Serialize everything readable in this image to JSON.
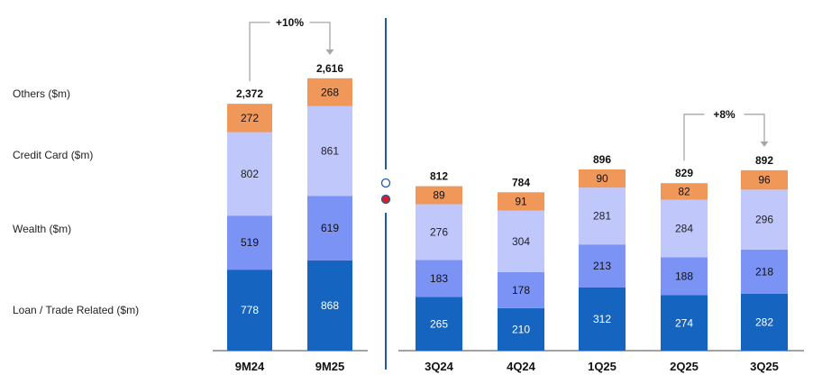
{
  "chart_data": [
    {
      "type": "bar",
      "stacked": true,
      "title": "",
      "categories": [
        "9M24",
        "9M25"
      ],
      "series": [
        {
          "name": "Loan / Trade Related ($m)",
          "values": [
            778,
            868
          ]
        },
        {
          "name": "Wealth ($m)",
          "values": [
            519,
            619
          ]
        },
        {
          "name": "Credit Card ($m)",
          "values": [
            802,
            861
          ]
        },
        {
          "name": "Others ($m)",
          "values": [
            272,
            268
          ]
        }
      ],
      "totals": [
        "2,372",
        "2,616"
      ],
      "growth": {
        "label": "+10%",
        "from": "9M24",
        "to": "9M25"
      }
    },
    {
      "type": "bar",
      "stacked": true,
      "title": "",
      "categories": [
        "3Q24",
        "4Q24",
        "1Q25",
        "2Q25",
        "3Q25"
      ],
      "series": [
        {
          "name": "Loan / Trade Related ($m)",
          "values": [
            265,
            210,
            312,
            274,
            282
          ]
        },
        {
          "name": "Wealth ($m)",
          "values": [
            183,
            178,
            213,
            188,
            218
          ]
        },
        {
          "name": "Credit Card ($m)",
          "values": [
            276,
            304,
            281,
            284,
            296
          ]
        },
        {
          "name": "Others ($m)",
          "values": [
            89,
            91,
            90,
            82,
            96
          ]
        }
      ],
      "totals": [
        "812",
        "784",
        "896",
        "829",
        "892"
      ],
      "growth": {
        "label": "+8%",
        "from": "2Q25",
        "to": "3Q25"
      }
    }
  ],
  "legend": [
    {
      "label": "Others ($m)"
    },
    {
      "label": "Credit Card ($m)"
    },
    {
      "label": "Wealth ($m)"
    },
    {
      "label": "Loan / Trade Related ($m)"
    }
  ],
  "colors": {
    "loan": "#1565c0",
    "wealth": "#7b93f5",
    "credit_card": "#c0c8fb",
    "others": "#f0975a",
    "axis": "#444444",
    "divider": "#1f5aa8",
    "connector": "#a6a6a6",
    "dot_filled": "#d61e2a",
    "dot_outline": "#1f5aa8"
  }
}
